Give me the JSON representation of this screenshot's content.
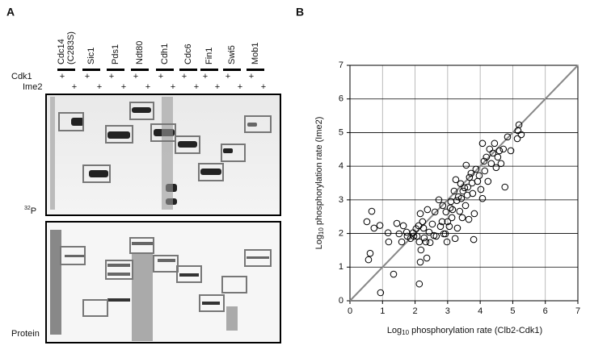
{
  "panel_labels": [
    "A",
    "B"
  ],
  "gel": {
    "lanes": [
      "Cdc14",
      "Sic1",
      "Pds1",
      "Ndt80",
      "Cdh1",
      "Cdc6",
      "Fin1",
      "Swi5",
      "Mob1"
    ],
    "lane_note": "(C283S)",
    "row_labels": [
      "Cdk1",
      "Ime2"
    ],
    "cdk1_marks": [
      "+",
      "+",
      "+",
      "+",
      "+",
      "+",
      "+",
      "+",
      "+"
    ],
    "ime2_marks": [
      "+",
      "+",
      "+",
      "+",
      "+",
      "+",
      "+",
      "+",
      "+"
    ],
    "isotope_mass": "32",
    "isotope_symbol": "P",
    "protein_label": "Protein"
  },
  "chart_data": {
    "type": "scatter",
    "xlabel": {
      "prefix": "Log",
      "sub": "10",
      "rest": " phosphorylation rate (Clb2-Cdk1)"
    },
    "ylabel": {
      "prefix": "Log",
      "sub": "10",
      "rest": " phosphorylation rate (Ime2)"
    },
    "xlim": [
      0,
      7
    ],
    "ylim": [
      0,
      7
    ],
    "xticks": [
      0,
      1,
      2,
      3,
      4,
      5,
      6,
      7
    ],
    "yticks": [
      0,
      1,
      2,
      3,
      4,
      5,
      6,
      7
    ],
    "grid": true,
    "diagonal": true,
    "color": "#000000",
    "x": [
      0.52,
      0.67,
      0.57,
      0.62,
      0.74,
      0.92,
      0.94,
      1.17,
      1.19,
      1.34,
      1.44,
      1.51,
      1.59,
      1.64,
      1.74,
      1.76,
      1.86,
      1.94,
      1.96,
      2.03,
      2.06,
      2.11,
      2.13,
      2.13,
      2.16,
      2.16,
      2.18,
      2.23,
      2.26,
      2.28,
      2.33,
      2.36,
      2.38,
      2.43,
      2.46,
      2.53,
      2.58,
      2.61,
      2.65,
      2.73,
      2.78,
      2.83,
      2.85,
      2.88,
      2.93,
      2.95,
      2.98,
      3.0,
      3.05,
      3.08,
      3.1,
      3.13,
      3.15,
      3.2,
      3.23,
      3.25,
      3.28,
      3.3,
      3.33,
      3.37,
      3.4,
      3.42,
      3.45,
      3.47,
      3.52,
      3.55,
      3.57,
      3.6,
      3.62,
      3.65,
      3.67,
      3.72,
      3.75,
      3.77,
      3.8,
      3.82,
      3.87,
      3.92,
      3.97,
      4.02,
      4.07,
      4.12,
      4.14,
      4.19,
      4.24,
      4.29,
      4.34,
      4.39,
      4.44,
      4.49,
      4.54,
      4.59,
      4.64,
      4.71,
      4.76,
      4.84,
      5.14,
      5.19,
      5.26,
      5.16,
      4.94,
      4.07
    ],
    "y": [
      2.35,
      2.66,
      1.22,
      1.41,
      2.16,
      2.24,
      0.24,
      2.02,
      1.75,
      0.79,
      2.3,
      1.99,
      1.75,
      2.23,
      2.04,
      1.92,
      1.85,
      2.02,
      1.92,
      2.14,
      1.92,
      2.23,
      1.75,
      0.5,
      1.15,
      2.59,
      1.51,
      2.35,
      2.16,
      1.87,
      1.75,
      1.27,
      2.71,
      2.04,
      1.73,
      2.28,
      1.94,
      2.64,
      1.92,
      3.0,
      2.21,
      2.35,
      2.83,
      1.99,
      1.99,
      2.64,
      1.75,
      2.35,
      2.21,
      2.76,
      2.95,
      2.47,
      2.71,
      3.26,
      1.85,
      3.6,
      2.98,
      2.16,
      3.09,
      2.66,
      3.48,
      3.04,
      2.47,
      3.26,
      3.36,
      2.83,
      4.03,
      3.14,
      3.38,
      2.42,
      3.67,
      3.79,
      3.5,
      3.19,
      1.82,
      2.59,
      3.91,
      3.55,
      3.72,
      3.31,
      3.04,
      4.15,
      3.86,
      4.27,
      3.55,
      4.51,
      4.08,
      4.39,
      4.68,
      3.96,
      4.27,
      4.46,
      4.08,
      4.51,
      3.38,
      4.87,
      4.82,
      5.23,
      4.94,
      5.06,
      4.46,
      4.68
    ]
  }
}
